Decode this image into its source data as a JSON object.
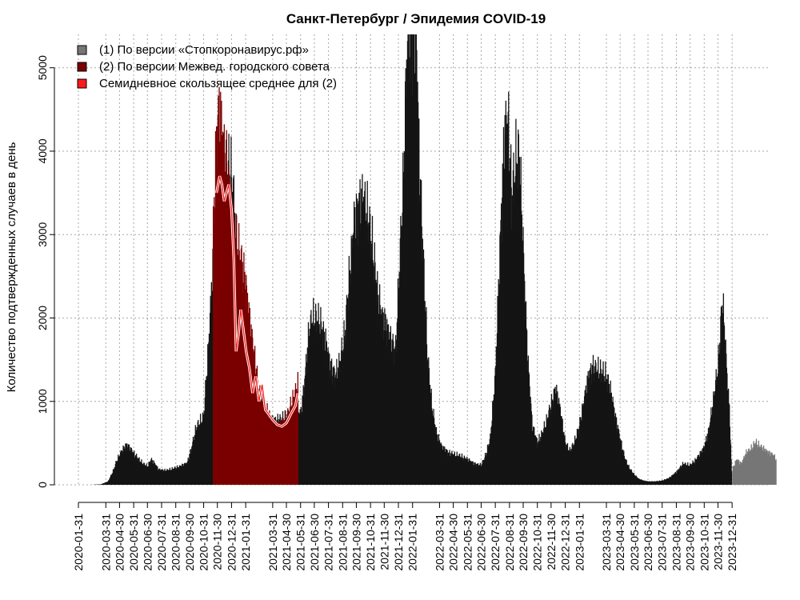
{
  "chart_data": {
    "type": "bar",
    "title": "Санкт-Петербург / Эпидемия COVID-19",
    "xlabel": "",
    "ylabel": "Количество подтвержденных случаев в день",
    "ylim": [
      0,
      5400
    ],
    "yticks": [
      0,
      1000,
      2000,
      3000,
      4000,
      5000
    ],
    "grid": true,
    "legend_position": "top-left",
    "xtick_labels": [
      "2020-01-31",
      "2020-03-31",
      "2020-04-30",
      "2020-05-31",
      "2020-06-30",
      "2020-07-31",
      "2020-08-31",
      "2020-09-30",
      "2020-10-31",
      "2020-11-30",
      "2020-12-31",
      "2021-01-31",
      "2021-03-31",
      "2021-04-30",
      "2021-05-31",
      "2021-06-30",
      "2021-07-31",
      "2021-08-31",
      "2021-09-30",
      "2021-10-31",
      "2021-11-30",
      "2021-12-31",
      "2022-01-31",
      "2022-03-31",
      "2022-04-30",
      "2022-05-31",
      "2022-06-30",
      "2022-07-31",
      "2022-08-31",
      "2022-09-30",
      "2022-10-31",
      "2022-11-30",
      "2022-12-31",
      "2023-01-31",
      "2023-03-31",
      "2023-04-30",
      "2023-05-31",
      "2023-06-30",
      "2023-07-31",
      "2023-08-31",
      "2023-09-30",
      "2023-10-31",
      "2023-11-30",
      "2023-12-31"
    ],
    "series": [
      {
        "name": "(1) По версии «Стопкоронавирус.рф»",
        "color": "#141414",
        "points": [
          [
            "2020-03-01",
            0
          ],
          [
            "2020-03-20",
            5
          ],
          [
            "2020-04-05",
            40
          ],
          [
            "2020-04-15",
            150
          ],
          [
            "2020-04-25",
            300
          ],
          [
            "2020-05-05",
            400
          ],
          [
            "2020-05-15",
            480
          ],
          [
            "2020-05-25",
            420
          ],
          [
            "2020-06-05",
            340
          ],
          [
            "2020-06-20",
            250
          ],
          [
            "2020-06-30",
            220
          ],
          [
            "2020-07-08",
            300
          ],
          [
            "2020-07-15",
            260
          ],
          [
            "2020-07-25",
            180
          ],
          [
            "2020-08-10",
            170
          ],
          [
            "2020-08-25",
            190
          ],
          [
            "2020-09-10",
            220
          ],
          [
            "2020-09-25",
            260
          ],
          [
            "2020-10-05",
            450
          ],
          [
            "2020-10-15",
            680
          ],
          [
            "2020-10-31",
            800
          ],
          [
            "2020-11-10",
            1600
          ],
          [
            "2020-11-20",
            2600
          ],
          [
            "2020-11-30",
            3600
          ],
          [
            "2020-12-10",
            3750
          ],
          [
            "2020-12-20",
            3700
          ],
          [
            "2020-12-28",
            3780
          ],
          [
            "2021-01-05",
            3400
          ],
          [
            "2021-01-12",
            2700
          ],
          [
            "2021-01-20",
            2300
          ],
          [
            "2021-02-01",
            1500
          ],
          [
            "2021-02-15",
            1100
          ],
          [
            "2021-03-01",
            850
          ],
          [
            "2021-03-20",
            780
          ],
          [
            "2021-04-10",
            760
          ],
          [
            "2021-05-01",
            800
          ],
          [
            "2021-05-20",
            820
          ],
          [
            "2021-06-01",
            860
          ],
          [
            "2021-06-10",
            1300
          ],
          [
            "2021-06-18",
            1800
          ],
          [
            "2021-06-25",
            1970
          ],
          [
            "2021-07-05",
            1960
          ],
          [
            "2021-07-15",
            1900
          ],
          [
            "2021-07-25",
            1700
          ],
          [
            "2021-08-05",
            1400
          ],
          [
            "2021-08-15",
            1300
          ],
          [
            "2021-08-25",
            1450
          ],
          [
            "2021-09-05",
            1800
          ],
          [
            "2021-09-15",
            2500
          ],
          [
            "2021-09-25",
            3100
          ],
          [
            "2021-10-05",
            3350
          ],
          [
            "2021-10-15",
            3400
          ],
          [
            "2021-10-25",
            3200
          ],
          [
            "2021-11-05",
            2800
          ],
          [
            "2021-11-15",
            2300
          ],
          [
            "2021-11-25",
            2000
          ],
          [
            "2021-12-05",
            1900
          ],
          [
            "2021-12-15",
            1700
          ],
          [
            "2021-12-25",
            1600
          ],
          [
            "2022-01-10",
            3500
          ],
          [
            "2022-01-20",
            5400
          ],
          [
            "2022-01-31",
            5400
          ],
          [
            "2022-02-08",
            5400
          ],
          [
            "2022-02-15",
            3800
          ],
          [
            "2022-02-25",
            2500
          ],
          [
            "2022-03-05",
            1500
          ],
          [
            "2022-03-15",
            900
          ],
          [
            "2022-03-25",
            600
          ],
          [
            "2022-04-05",
            450
          ],
          [
            "2022-04-20",
            380
          ],
          [
            "2022-05-01",
            360
          ],
          [
            "2022-05-15",
            340
          ],
          [
            "2022-06-01",
            300
          ],
          [
            "2022-06-15",
            250
          ],
          [
            "2022-06-30",
            230
          ],
          [
            "2022-07-10",
            350
          ],
          [
            "2022-07-20",
            550
          ],
          [
            "2022-07-31",
            1300
          ],
          [
            "2022-08-10",
            2800
          ],
          [
            "2022-08-20",
            4200
          ],
          [
            "2022-08-28",
            4350
          ],
          [
            "2022-09-05",
            3400
          ],
          [
            "2022-09-15",
            3900
          ],
          [
            "2022-09-22",
            3900
          ],
          [
            "2022-09-30",
            2800
          ],
          [
            "2022-10-10",
            1500
          ],
          [
            "2022-10-20",
            700
          ],
          [
            "2022-10-31",
            500
          ],
          [
            "2022-11-10",
            600
          ],
          [
            "2022-11-20",
            750
          ],
          [
            "2022-11-30",
            950
          ],
          [
            "2022-12-10",
            1150
          ],
          [
            "2022-12-20",
            900
          ],
          [
            "2022-12-31",
            500
          ],
          [
            "2023-01-10",
            400
          ],
          [
            "2023-01-20",
            500
          ],
          [
            "2023-01-31",
            700
          ],
          [
            "2023-02-10",
            1000
          ],
          [
            "2023-02-20",
            1300
          ],
          [
            "2023-03-01",
            1400
          ],
          [
            "2023-03-15",
            1350
          ],
          [
            "2023-03-31",
            1300
          ],
          [
            "2023-04-10",
            1100
          ],
          [
            "2023-04-20",
            800
          ],
          [
            "2023-04-30",
            550
          ],
          [
            "2023-05-10",
            320
          ],
          [
            "2023-05-20",
            200
          ],
          [
            "2023-05-31",
            120
          ],
          [
            "2023-06-10",
            70
          ],
          [
            "2023-06-20",
            50
          ],
          [
            "2023-06-30",
            40
          ],
          [
            "2023-07-15",
            40
          ],
          [
            "2023-07-31",
            50
          ],
          [
            "2023-08-15",
            80
          ],
          [
            "2023-08-31",
            150
          ],
          [
            "2023-09-15",
            250
          ],
          [
            "2023-09-30",
            230
          ],
          [
            "2023-10-10",
            280
          ],
          [
            "2023-10-20",
            350
          ],
          [
            "2023-10-31",
            450
          ],
          [
            "2023-11-10",
            650
          ],
          [
            "2023-11-20",
            1000
          ],
          [
            "2023-11-30",
            1400
          ],
          [
            "2023-12-05",
            1800
          ],
          [
            "2023-12-10",
            2200
          ],
          [
            "2023-12-15",
            1800
          ],
          [
            "2023-12-20",
            1300
          ],
          [
            "2023-12-25",
            900
          ],
          [
            "2023-12-31",
            0
          ]
        ]
      },
      {
        "name": "(1) По версии «Стопкоронавирус.рф»",
        "color": "#767676",
        "points": [
          [
            "2024-01-01",
            0
          ],
          [
            "2024-01-02",
            200
          ],
          [
            "2024-01-10",
            300
          ],
          [
            "2024-01-20",
            250
          ],
          [
            "2024-01-31",
            380
          ],
          [
            "2024-02-10",
            420
          ],
          [
            "2024-02-20",
            500
          ],
          [
            "2024-02-29",
            460
          ],
          [
            "2024-03-10",
            420
          ],
          [
            "2024-03-20",
            380
          ],
          [
            "2024-03-31",
            350
          ],
          [
            "2024-04-05",
            300
          ],
          [
            "2024-04-06",
            0
          ]
        ]
      },
      {
        "name": "(2) По версии Межвед. городского совета",
        "color": "#7a0000",
        "points": [
          [
            "2020-11-20",
            0
          ],
          [
            "2020-11-21",
            3000
          ],
          [
            "2020-11-28",
            4200
          ],
          [
            "2020-12-05",
            4500
          ],
          [
            "2020-12-12",
            4100
          ],
          [
            "2020-12-20",
            3800
          ],
          [
            "2020-12-31",
            3200
          ],
          [
            "2021-01-10",
            2900
          ],
          [
            "2021-01-20",
            2700
          ],
          [
            "2021-01-31",
            2400
          ],
          [
            "2021-02-10",
            1900
          ],
          [
            "2021-02-20",
            1500
          ],
          [
            "2021-03-01",
            1100
          ],
          [
            "2021-03-10",
            1000
          ],
          [
            "2021-03-20",
            850
          ],
          [
            "2021-04-01",
            720
          ],
          [
            "2021-04-10",
            700
          ],
          [
            "2021-04-20",
            720
          ],
          [
            "2021-05-01",
            800
          ],
          [
            "2021-05-10",
            950
          ],
          [
            "2021-05-20",
            1100
          ],
          [
            "2021-05-25",
            1200
          ],
          [
            "2021-05-26",
            0
          ]
        ]
      },
      {
        "name": "Семидневное скользящее среднее для (2)",
        "color": "#ff1a1a",
        "points": [
          [
            "2020-11-28",
            3500
          ],
          [
            "2020-12-05",
            3700
          ],
          [
            "2020-12-10",
            3600
          ],
          [
            "2020-12-15",
            3400
          ],
          [
            "2020-12-20",
            3500
          ],
          [
            "2020-12-25",
            3600
          ],
          [
            "2020-12-31",
            3300
          ],
          [
            "2021-01-05",
            2700
          ],
          [
            "2021-01-10",
            1600
          ],
          [
            "2021-01-15",
            1800
          ],
          [
            "2021-01-20",
            2100
          ],
          [
            "2021-01-25",
            1900
          ],
          [
            "2021-02-01",
            1600
          ],
          [
            "2021-02-08",
            1400
          ],
          [
            "2021-02-15",
            1100
          ],
          [
            "2021-02-22",
            1300
          ],
          [
            "2021-03-01",
            1000
          ],
          [
            "2021-03-08",
            1200
          ],
          [
            "2021-03-15",
            900
          ],
          [
            "2021-03-22",
            850
          ],
          [
            "2021-03-31",
            780
          ],
          [
            "2021-04-10",
            720
          ],
          [
            "2021-04-20",
            700
          ],
          [
            "2021-04-30",
            740
          ],
          [
            "2021-05-10",
            850
          ],
          [
            "2021-05-20",
            950
          ],
          [
            "2021-05-25",
            1100
          ]
        ]
      }
    ]
  }
}
